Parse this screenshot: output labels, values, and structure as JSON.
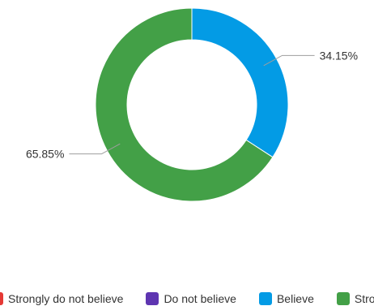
{
  "chart_data": {
    "type": "pie",
    "variant": "donut",
    "slices": [
      {
        "label": "Believe",
        "value": 34.15,
        "display": "34.15%",
        "color": "#039be5"
      },
      {
        "label": "Strongly believe",
        "value": 65.85,
        "display": "65.85%",
        "color": "#43a047"
      }
    ],
    "legend": {
      "placement": "bottom",
      "entries": [
        {
          "label": "Strongly do not believe",
          "color": "#e53935"
        },
        {
          "label": "Do not believe",
          "color": "#5e35b1"
        },
        {
          "label": "Believe",
          "color": "#039be5"
        },
        {
          "label": "Strongly believe",
          "color": "#43a047"
        }
      ]
    }
  }
}
